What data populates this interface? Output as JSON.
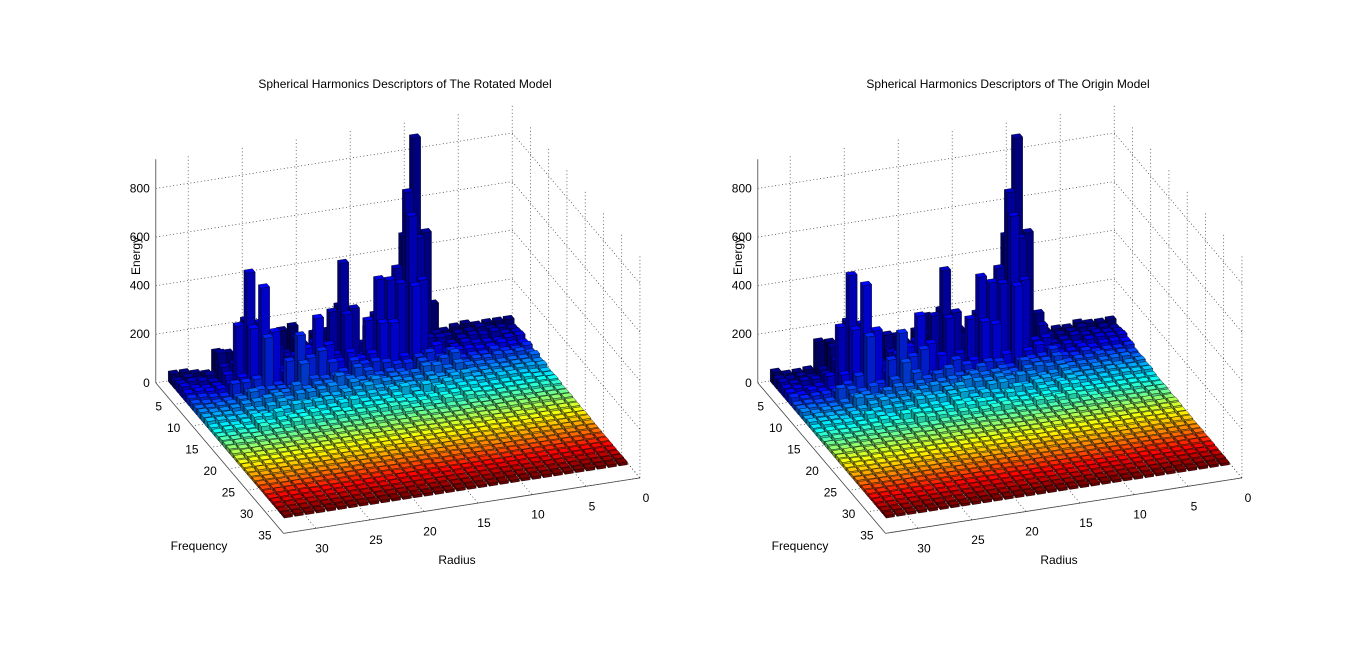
{
  "figure": {
    "background": "#ffffff",
    "colormap": "jet"
  },
  "chart_data": [
    {
      "type": "bar3",
      "title": "Spherical Harmonics Descriptors of The Rotated Model",
      "xlabel": "Radius",
      "ylabel": "Frequency",
      "zlabel": "Energy",
      "zlim": [
        0,
        800
      ],
      "z_ticks": [
        0,
        200,
        400,
        600,
        800
      ],
      "radius_ticks": [
        0,
        5,
        10,
        15,
        20,
        25,
        30
      ],
      "frequency_ticks": [
        5,
        10,
        15,
        20,
        25,
        30,
        35
      ],
      "grid": true,
      "radius_count": 32,
      "frequency_count": 32,
      "peak_energy": 880,
      "description_of_shape": "energy concentrated at low frequencies and mid radii; tallest spike near radius 10, frequency 2",
      "peaks": [
        {
          "radius": 10,
          "frequency": 2,
          "energy": 880
        },
        {
          "radius": 11,
          "frequency": 3,
          "energy": 680
        },
        {
          "radius": 11,
          "frequency": 4,
          "energy": 600
        },
        {
          "radius": 26,
          "frequency": 4,
          "energy": 470
        },
        {
          "radius": 25,
          "frequency": 5,
          "energy": 420
        },
        {
          "radius": 17,
          "frequency": 3,
          "energy": 430
        },
        {
          "radius": 14,
          "frequency": 4,
          "energy": 360
        },
        {
          "radius": 13,
          "frequency": 4,
          "energy": 350
        },
        {
          "radius": 20,
          "frequency": 5,
          "energy": 260
        },
        {
          "radius": 22,
          "frequency": 6,
          "energy": 220
        }
      ]
    },
    {
      "type": "bar3",
      "title": "Spherical Harmonics Descriptors of The Origin Model",
      "xlabel": "Radius",
      "ylabel": "Frequency",
      "zlabel": "Energy",
      "zlim": [
        0,
        800
      ],
      "z_ticks": [
        0,
        200,
        400,
        600,
        800
      ],
      "radius_ticks": [
        0,
        5,
        10,
        15,
        20,
        25,
        30
      ],
      "frequency_ticks": [
        5,
        10,
        15,
        20,
        25,
        30,
        35
      ],
      "grid": true,
      "radius_count": 32,
      "frequency_count": 32,
      "peak_energy": 880,
      "peaks": [
        {
          "radius": 10,
          "frequency": 2,
          "energy": 880
        },
        {
          "radius": 11,
          "frequency": 3,
          "energy": 680
        },
        {
          "radius": 11,
          "frequency": 4,
          "energy": 600
        },
        {
          "radius": 26,
          "frequency": 4,
          "energy": 460
        },
        {
          "radius": 25,
          "frequency": 5,
          "energy": 430
        },
        {
          "radius": 17,
          "frequency": 3,
          "energy": 400
        },
        {
          "radius": 14,
          "frequency": 4,
          "energy": 370
        },
        {
          "radius": 13,
          "frequency": 4,
          "energy": 340
        },
        {
          "radius": 20,
          "frequency": 5,
          "energy": 270
        },
        {
          "radius": 22,
          "frequency": 6,
          "energy": 230
        }
      ]
    }
  ]
}
